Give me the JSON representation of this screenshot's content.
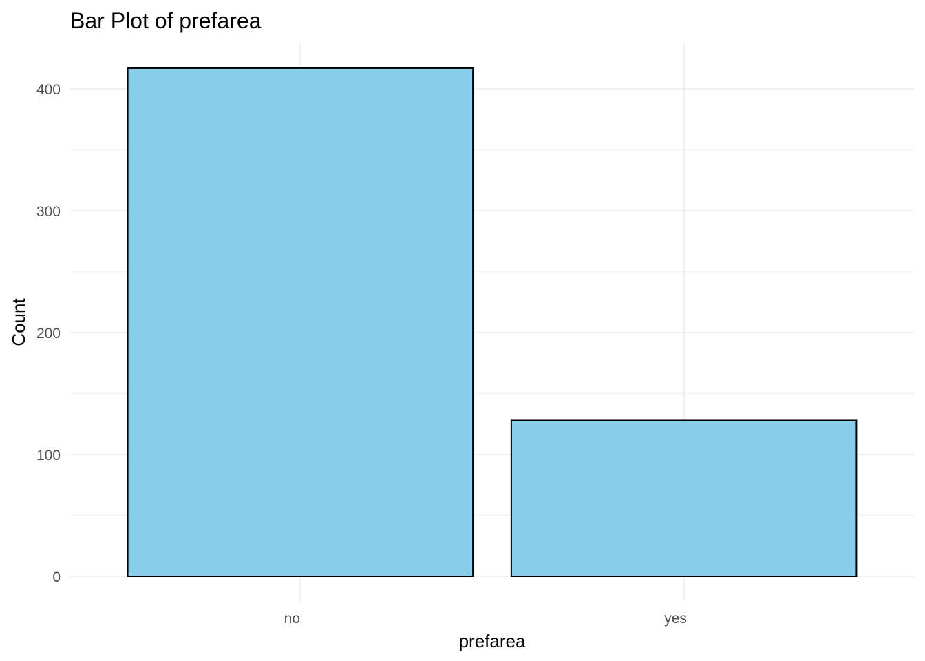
{
  "chart_data": {
    "type": "bar",
    "title": "Bar Plot of prefarea",
    "xlabel": "prefarea",
    "ylabel": "Count",
    "categories": [
      "no",
      "yes"
    ],
    "values": [
      417,
      128
    ],
    "ylim": [
      0,
      440
    ],
    "yticks": [
      0,
      100,
      200,
      300,
      400
    ],
    "grid": true,
    "legend": "none",
    "bar_fill": "#87CEEB",
    "bar_outline": "#000000"
  }
}
